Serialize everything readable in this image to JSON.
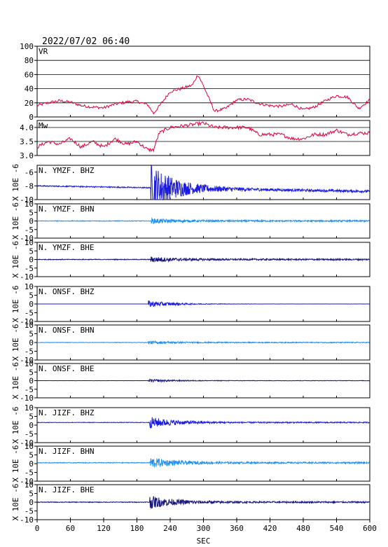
{
  "header": {
    "datetime": "2022/07/02 06:40"
  },
  "colors": {
    "vr": "#e0003c",
    "mw": "#e0003c",
    "bhz": "#1a1ae0",
    "bhn": "#1f8ff0",
    "bhe": "#14147a",
    "grid": "#000000"
  },
  "chart_data": [
    {
      "type": "line",
      "label": "VR",
      "ylim": [
        0,
        100
      ],
      "yticks": [
        "100",
        "80",
        "60",
        "40",
        "20",
        "0"
      ],
      "yticks_values": [
        100,
        80,
        60,
        40,
        20,
        0
      ],
      "x": [
        0,
        20,
        40,
        60,
        80,
        100,
        120,
        140,
        160,
        180,
        200,
        210,
        220,
        240,
        260,
        280,
        290,
        300,
        320,
        340,
        360,
        380,
        400,
        420,
        440,
        460,
        480,
        500,
        520,
        540,
        560,
        580,
        600
      ],
      "values": [
        16,
        20,
        23,
        21,
        16,
        14,
        13,
        18,
        21,
        22,
        17,
        5,
        15,
        36,
        40,
        45,
        60,
        44,
        8,
        12,
        24,
        25,
        19,
        16,
        15,
        18,
        10,
        14,
        23,
        30,
        28,
        12,
        24
      ],
      "grid": true
    },
    {
      "type": "line",
      "label": "Mw",
      "ylim": [
        3.0,
        4.25
      ],
      "yticks": [
        "4.0",
        "3.5",
        "3.0"
      ],
      "yticks_values": [
        4.0,
        3.5,
        3.0
      ],
      "x": [
        0,
        20,
        40,
        60,
        80,
        100,
        120,
        140,
        160,
        180,
        200,
        210,
        220,
        240,
        260,
        280,
        300,
        320,
        340,
        360,
        380,
        400,
        420,
        440,
        460,
        480,
        500,
        520,
        540,
        560,
        580,
        600
      ],
      "values": [
        3.3,
        3.5,
        3.4,
        3.6,
        3.3,
        3.5,
        3.3,
        3.6,
        3.4,
        3.5,
        3.2,
        3.2,
        3.8,
        4.0,
        4.05,
        4.1,
        4.15,
        4.0,
        4.0,
        4.0,
        4.0,
        3.75,
        3.75,
        3.75,
        3.6,
        3.6,
        3.75,
        3.75,
        3.9,
        3.75,
        3.8,
        3.8
      ],
      "grid": true
    },
    {
      "type": "line",
      "label": "N. YMZF. BHZ",
      "ylim": [
        -10,
        -5
      ],
      "yticks": [
        "-6",
        "-8",
        "-10"
      ],
      "yticks_values": [
        -6,
        -8,
        -10
      ],
      "ylabel": "X 10E -6",
      "baseline": -8.0,
      "drift": -0.8,
      "onset": 205,
      "noise": 0.08,
      "peak": 3.5,
      "color_key": "bhz"
    },
    {
      "type": "line",
      "label": "N. YMZF. BHN",
      "ylim": [
        -10,
        10
      ],
      "yticks": [
        "10",
        "5",
        "0",
        "-5",
        "-10"
      ],
      "yticks_values": [
        10,
        5,
        0,
        -5,
        -10
      ],
      "ylabel": "X 10E -6",
      "baseline": 0,
      "drift": 0,
      "onset": 205,
      "noise": 0.2,
      "peak": 1.2,
      "color_key": "bhn"
    },
    {
      "type": "line",
      "label": "N. YMZF. BHE",
      "ylim": [
        -10,
        10
      ],
      "yticks": [
        "10",
        "5",
        "0",
        "-5",
        "-10"
      ],
      "yticks_values": [
        10,
        5,
        0,
        -5,
        -10
      ],
      "ylabel": "X 10E -6",
      "baseline": 0,
      "drift": 0,
      "onset": 205,
      "noise": 0.2,
      "peak": 1.4,
      "color_key": "bhe"
    },
    {
      "type": "line",
      "label": "N. ONSF. BHZ",
      "ylim": [
        -10,
        10
      ],
      "yticks": [
        "10",
        "5",
        "0",
        "-5",
        "-10"
      ],
      "yticks_values": [
        10,
        5,
        0,
        -5,
        -10
      ],
      "ylabel": "X 10E -6",
      "baseline": 0,
      "drift": 0,
      "onset": 200,
      "noise": 0.02,
      "peak": 2.0,
      "color_key": "bhz"
    },
    {
      "type": "line",
      "label": "N. ONSF. BHN",
      "ylim": [
        -10,
        10
      ],
      "yticks": [
        "10",
        "5",
        "0",
        "-5",
        "-10"
      ],
      "yticks_values": [
        10,
        5,
        0,
        -5,
        -10
      ],
      "ylabel": "X 10E -6",
      "baseline": 0,
      "drift": 0,
      "onset": 200,
      "noise": 0.12,
      "peak": 0.8,
      "color_key": "bhn"
    },
    {
      "type": "line",
      "label": "N. ONSF. BHE",
      "ylim": [
        -10,
        10
      ],
      "yticks": [
        "10",
        "5",
        "0",
        "-5",
        "-10"
      ],
      "yticks_values": [
        10,
        5,
        0,
        -5,
        -10
      ],
      "ylabel": "X 10E -6",
      "baseline": 0,
      "drift": 0,
      "onset": 200,
      "noise": 0.05,
      "peak": 0.8,
      "color_key": "bhe"
    },
    {
      "type": "line",
      "label": "N. JIZF. BHZ",
      "ylim": [
        -10,
        10
      ],
      "yticks": [
        "10",
        "5",
        "0",
        "-5",
        "-10"
      ],
      "yticks_values": [
        10,
        5,
        0,
        -5,
        -10
      ],
      "ylabel": "X 10E -6",
      "baseline": 1.5,
      "drift": 0,
      "onset": 203,
      "noise": 0.15,
      "peak": 3.0,
      "color_key": "bhz"
    },
    {
      "type": "line",
      "label": "N. JIZF. BHN",
      "ylim": [
        -10,
        10
      ],
      "yticks": [
        "10",
        "5",
        "0",
        "-5",
        "-10"
      ],
      "yticks_values": [
        10,
        5,
        0,
        -5,
        -10
      ],
      "ylabel": "X 10E -6",
      "baseline": 0.5,
      "drift": 0,
      "onset": 203,
      "noise": 0.2,
      "peak": 2.8,
      "color_key": "bhn"
    },
    {
      "type": "line",
      "label": "N. JIZF. BHE",
      "ylim": [
        -10,
        10
      ],
      "yticks": [
        "10",
        "5",
        "0",
        "-5",
        "-10"
      ],
      "yticks_values": [
        10,
        5,
        0,
        -5,
        -10
      ],
      "ylabel": "X 10E -6",
      "baseline": 0,
      "drift": 0,
      "onset": 203,
      "noise": 0.2,
      "peak": 3.5,
      "color_key": "bhe"
    }
  ],
  "xaxis": {
    "xlim": [
      0,
      600
    ],
    "ticks": [
      "0",
      "60",
      "120",
      "180",
      "240",
      "300",
      "360",
      "420",
      "480",
      "540",
      "600"
    ],
    "ticks_values": [
      0,
      60,
      120,
      180,
      240,
      300,
      360,
      420,
      480,
      540,
      600
    ],
    "label": "SEC"
  }
}
